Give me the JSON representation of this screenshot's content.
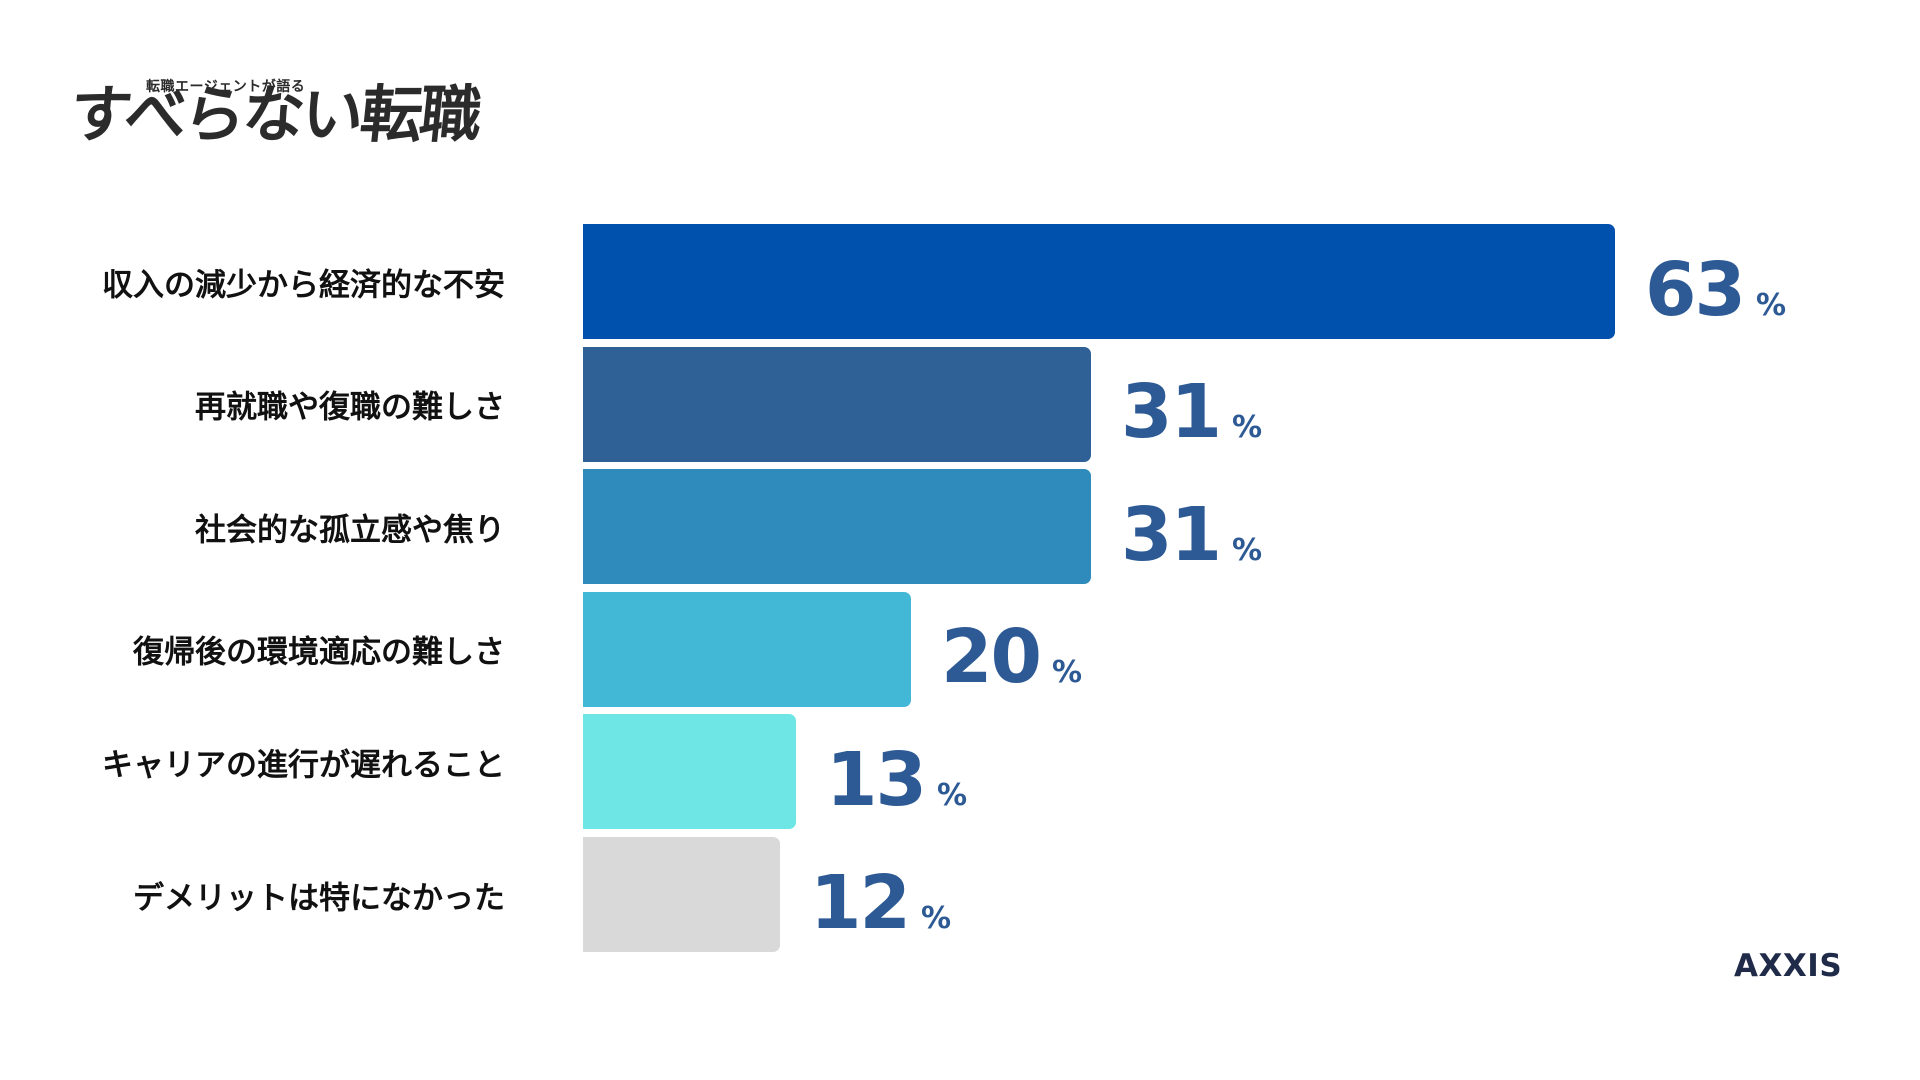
{
  "logo": {
    "subtitle": "転職エージェントが語る",
    "title": "すべらない転職"
  },
  "brand": "AXXIS",
  "colors": {
    "value_text": "#2d5a94",
    "label_text": "#111111"
  },
  "chart_data": {
    "type": "bar",
    "orientation": "horizontal",
    "categories": [
      "収入の減少から経済的な不安",
      "再就職や復職の難しさ",
      "社会的な孤立感や焦り",
      "復帰後の環境適応の難しさ",
      "キャリアの進行が遅れること",
      "デメリットは特になかった"
    ],
    "values": [
      63,
      31,
      31,
      20,
      13,
      12
    ],
    "unit": "%",
    "bar_colors": [
      "#0050ad",
      "#2f6096",
      "#2e8bbb",
      "#42b8d6",
      "#6ee6e6",
      "#d9d9d9"
    ],
    "xlim": [
      0,
      63
    ],
    "grid": false,
    "legend": "none"
  }
}
